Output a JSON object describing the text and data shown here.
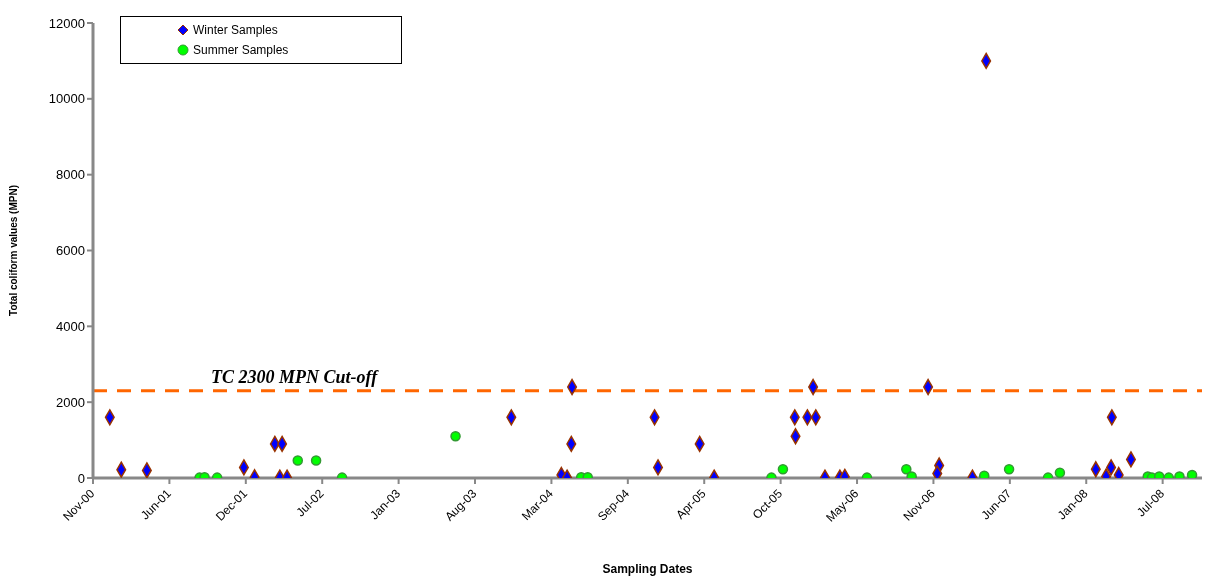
{
  "chart_data": {
    "type": "scatter",
    "xlabel": "Sampling Dates",
    "ylabel": "Total coliform values (MPN)",
    "xlim": [
      "2000-11-20",
      "2008-11-01"
    ],
    "xticks": [
      {
        "value": "2000-11-20",
        "label": "Nov-00"
      },
      {
        "value": "2001-06-08",
        "label": "Jun-01"
      },
      {
        "value": "2001-12-25",
        "label": "Dec-01"
      },
      {
        "value": "2002-07-13",
        "label": "Jul-02"
      },
      {
        "value": "2003-01-29",
        "label": "Jan-03"
      },
      {
        "value": "2003-08-17",
        "label": "Aug-03"
      },
      {
        "value": "2004-03-04",
        "label": "Mar-04"
      },
      {
        "value": "2004-09-20",
        "label": "Sep-04"
      },
      {
        "value": "2005-04-08",
        "label": "Apr-05"
      },
      {
        "value": "2005-10-25",
        "label": "Oct-05"
      },
      {
        "value": "2006-05-13",
        "label": "May-06"
      },
      {
        "value": "2006-11-29",
        "label": "Nov-06"
      },
      {
        "value": "2007-06-17",
        "label": "Jun-07"
      },
      {
        "value": "2008-01-03",
        "label": "Jan-08"
      },
      {
        "value": "2008-07-21",
        "label": "Jul-08"
      }
    ],
    "ylim": [
      0,
      12000
    ],
    "yticks": [
      0,
      2000,
      4000,
      6000,
      8000,
      10000,
      12000
    ],
    "grid": false,
    "legend": "top left",
    "ref_lines": [
      {
        "axis": "y",
        "value": 2300,
        "label": "TC 2300 MPN Cut-off",
        "color": "#ff6600",
        "line_style": "dashed"
      }
    ],
    "series": [
      {
        "name": "Winter Samples",
        "color": "#0000ff",
        "marker": "diamond",
        "x": [
          "2001-01-03",
          "2001-02-02",
          "2001-04-10",
          "2001-12-20",
          "2002-01-17",
          "2002-03-11",
          "2002-03-30",
          "2002-03-24",
          "2002-04-12",
          "2003-11-20",
          "2004-03-30",
          "2004-04-14",
          "2004-04-27",
          "2004-04-25",
          "2004-11-29",
          "2004-12-08",
          "2005-03-27",
          "2005-05-04",
          "2005-12-01",
          "2005-12-03",
          "2006-01-03",
          "2006-01-25",
          "2006-01-18",
          "2006-02-18",
          "2006-03-29",
          "2006-04-11",
          "2006-11-15",
          "2006-12-14",
          "2006-12-09",
          "2007-03-11",
          "2007-04-16",
          "2008-01-28",
          "2008-02-24",
          "2008-03-08",
          "2008-03-10",
          "2008-03-28",
          "2008-04-29"
        ],
        "values": [
          1600,
          220,
          200,
          280,
          20,
          900,
          900,
          10,
          10,
          1600,
          80,
          10,
          2400,
          900,
          1600,
          280,
          900,
          10,
          1600,
          1100,
          1600,
          1600,
          2400,
          10,
          10,
          30,
          2400,
          330,
          120,
          10,
          11000,
          230,
          40,
          280,
          1600,
          80,
          490
        ]
      },
      {
        "name": "Summer Samples",
        "color": "#00ff00",
        "marker": "circle",
        "x": [
          "2001-08-26",
          "2001-09-08",
          "2001-10-11",
          "2002-05-10",
          "2002-06-27",
          "2002-09-03",
          "2003-06-27",
          "2004-05-21",
          "2004-06-07",
          "2005-10-01",
          "2005-10-31",
          "2006-06-08",
          "2006-09-19",
          "2006-10-03",
          "2007-04-11",
          "2007-06-15",
          "2007-09-25",
          "2007-10-26",
          "2008-06-12",
          "2008-06-23",
          "2008-07-12",
          "2008-08-06",
          "2008-09-03",
          "2008-10-06"
        ],
        "values": [
          10,
          20,
          10,
          460,
          460,
          10,
          1100,
          20,
          20,
          10,
          230,
          10,
          230,
          40,
          60,
          230,
          10,
          140,
          40,
          10,
          40,
          10,
          40,
          80
        ]
      }
    ]
  }
}
